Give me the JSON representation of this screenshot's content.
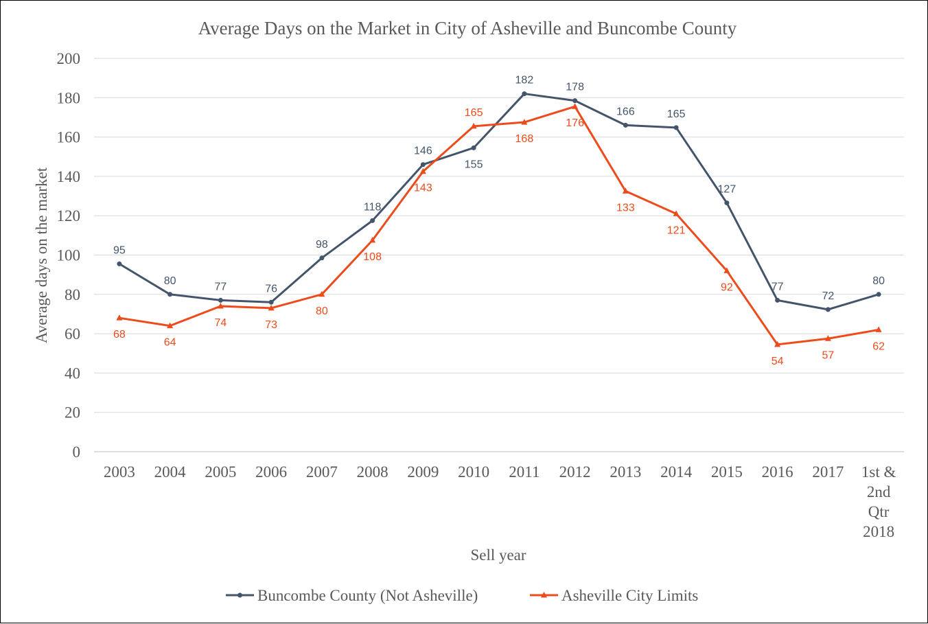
{
  "chart_data": {
    "type": "line",
    "title": "Average Days on the Market in City of Asheville  and Buncombe County",
    "xlabel": "Sell year",
    "ylabel": "Average  days on the market",
    "ylim": [
      0,
      200
    ],
    "yticks": [
      0,
      20,
      40,
      60,
      80,
      100,
      120,
      140,
      160,
      180,
      200
    ],
    "grid": true,
    "legend_position": "bottom",
    "categories": [
      "2003",
      "2004",
      "2005",
      "2006",
      "2007",
      "2008",
      "2009",
      "2010",
      "2011",
      "2012",
      "2013",
      "2014",
      "2015",
      "2016",
      "2017",
      "1st & 2nd Qtr 2018"
    ],
    "category_lines": [
      [
        "2003"
      ],
      [
        "2004"
      ],
      [
        "2005"
      ],
      [
        "2006"
      ],
      [
        "2007"
      ],
      [
        "2008"
      ],
      [
        "2009"
      ],
      [
        "2010"
      ],
      [
        "2011"
      ],
      [
        "2012"
      ],
      [
        "2013"
      ],
      [
        "2014"
      ],
      [
        "2015"
      ],
      [
        "2016"
      ],
      [
        "2017"
      ],
      [
        "1st &",
        "2nd",
        "Qtr",
        "2018"
      ]
    ],
    "series": [
      {
        "name": "Buncombe County (Not Asheville)",
        "color": "#44546A",
        "marker": "circle",
        "values": [
          95.5,
          80,
          77,
          76,
          98.5,
          117.5,
          146,
          154.5,
          182,
          178.5,
          166,
          164.8,
          126.5,
          77,
          72.3,
          80
        ],
        "labels": [
          "95",
          "80",
          "77",
          "76",
          "98",
          "118",
          "146",
          "155",
          "182",
          "178",
          "166",
          "165",
          "127",
          "77",
          "72",
          "80"
        ],
        "label_pos": [
          "above",
          "above",
          "above",
          "above",
          "above",
          "above",
          "above",
          "below",
          "above",
          "above",
          "above",
          "above",
          "above",
          "above",
          "above",
          "above"
        ]
      },
      {
        "name": "Asheville City Limits",
        "color": "#ED4B1C",
        "marker": "triangle",
        "values": [
          68,
          64,
          74,
          73,
          80,
          107.5,
          142.5,
          165.5,
          167.5,
          175.5,
          132.5,
          121,
          92,
          54.5,
          57.5,
          62
        ],
        "labels": [
          "68",
          "64",
          "74",
          "73",
          "80",
          "108",
          "143",
          "165",
          "168",
          "176",
          "133",
          "121",
          "92",
          "54",
          "57",
          "62"
        ],
        "label_pos": [
          "below",
          "below",
          "below",
          "below",
          "below",
          "below",
          "below",
          "above",
          "below",
          "below",
          "below",
          "below",
          "below",
          "below",
          "below",
          "below"
        ]
      }
    ]
  }
}
